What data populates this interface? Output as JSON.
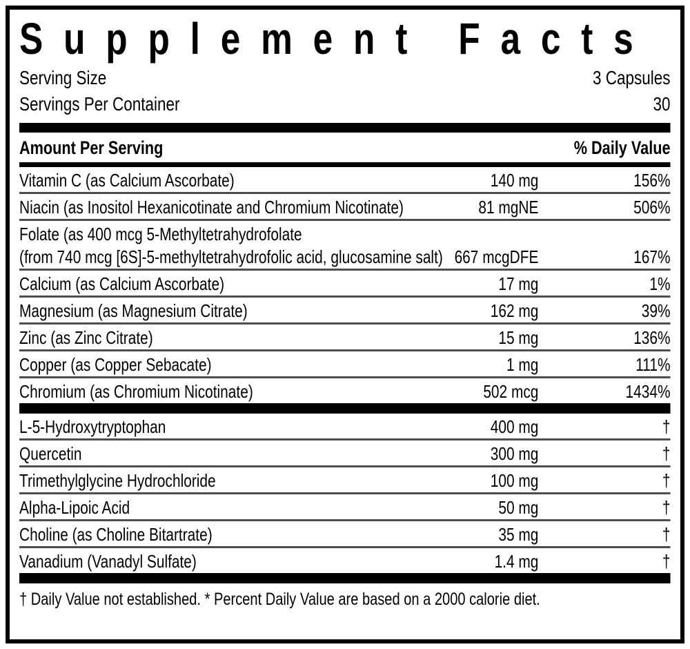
{
  "label": {
    "title": "Supplement Facts",
    "serving": {
      "size_label": "Serving Size",
      "size_value": "3 Capsules",
      "per_container_label": "Servings Per Container",
      "per_container_value": "30"
    },
    "columns": {
      "amount_header": "Amount Per Serving",
      "daily_value_header": "% Daily Value"
    },
    "sections": [
      {
        "rows": [
          {
            "name": "Vitamin C (as Calcium Ascorbate)",
            "amount": "140 mg",
            "dv": "156%"
          },
          {
            "name": "Niacin (as Inositol Hexanicotinate and Chromium Nicotinate)",
            "amount": "81 mgNE",
            "dv": "506%"
          },
          {
            "name": "Folate (as 400 mcg 5-Methyltetrahydrofolate",
            "name2": "(from 740 mcg [6S]-5-methyltetrahydrofolic acid, glucosamine salt)",
            "amount": "667 mcgDFE",
            "dv": "167%"
          },
          {
            "name": "Calcium (as Calcium Ascorbate)",
            "amount": "17 mg",
            "dv": "1%"
          },
          {
            "name": "Magnesium (as Magnesium Citrate)",
            "amount": "162 mg",
            "dv": "39%"
          },
          {
            "name": "Zinc (as Zinc Citrate)",
            "amount": "15 mg",
            "dv": "136%"
          },
          {
            "name": "Copper (as Copper Sebacate)",
            "amount": "1 mg",
            "dv": "111%"
          },
          {
            "name": "Chromium (as Chromium Nicotinate)",
            "amount": "502 mcg",
            "dv": "1434%"
          }
        ]
      },
      {
        "rows": [
          {
            "name": "L-5-Hydroxytryptophan",
            "amount": "400 mg",
            "dv": "†"
          },
          {
            "name": "Quercetin",
            "amount": "300 mg",
            "dv": "†"
          },
          {
            "name": "Trimethylglycine Hydrochloride",
            "amount": "100 mg",
            "dv": "†"
          },
          {
            "name": "Alpha-Lipoic Acid",
            "amount": "50 mg",
            "dv": "†"
          },
          {
            "name": "Choline (as Choline Bitartrate)",
            "amount": "35 mg",
            "dv": "†"
          },
          {
            "name": "Vanadium (Vanadyl Sulfate)",
            "amount": "1.4 mg",
            "dv": "†"
          }
        ]
      }
    ],
    "footnote": "† Daily Value not established.  * Percent Daily Value are based on a 2000 calorie diet."
  }
}
